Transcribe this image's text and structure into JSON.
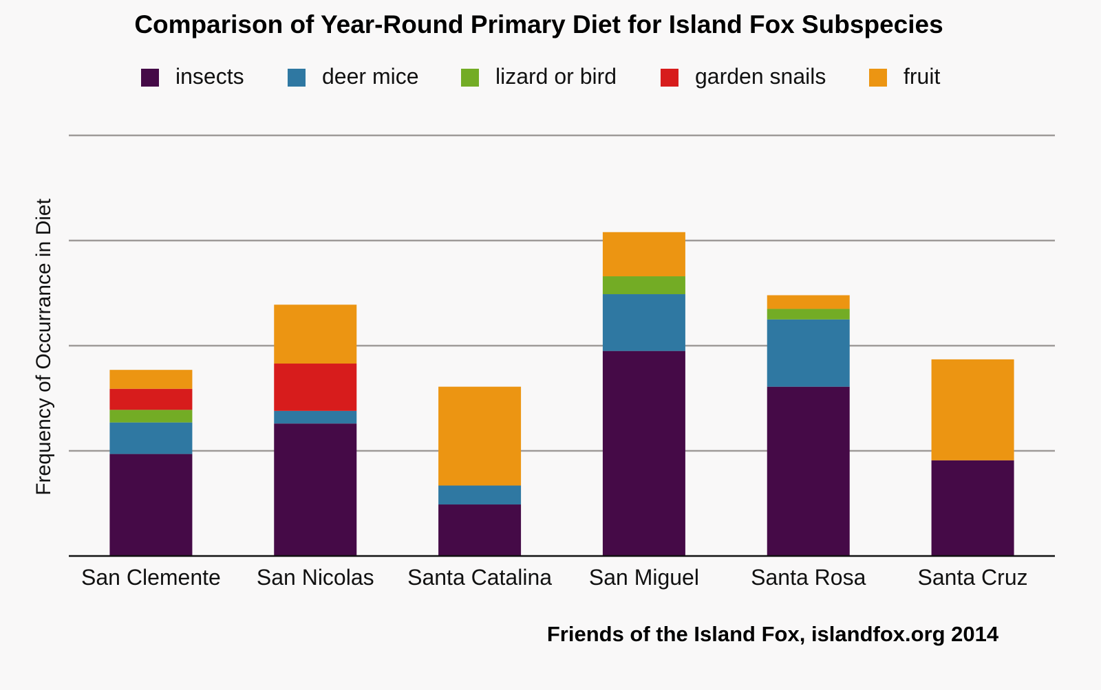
{
  "chart_data": {
    "type": "bar",
    "stacked": true,
    "title": "Comparison of Year-Round Primary Diet for Island Fox Subspecies",
    "xlabel": "",
    "ylabel": "Frequency of Occurrance in Diet",
    "credit": "Friends of the Island Fox, islandfox.org 2014",
    "categories": [
      "San Clemente",
      "San Nicolas",
      "Santa Catalina",
      "San Miguel",
      "Santa Rosa",
      "Santa Cruz"
    ],
    "series": [
      {
        "name": "insects",
        "color": "#450a47",
        "values": [
          0.97,
          1.26,
          0.49,
          1.95,
          1.61,
          0.91
        ]
      },
      {
        "name": "deer mice",
        "color": "#2f78a2",
        "values": [
          0.3,
          0.12,
          0.18,
          0.54,
          0.64,
          0
        ]
      },
      {
        "name": "lizard or bird",
        "color": "#73ac25",
        "values": [
          0.12,
          0,
          0,
          0.17,
          0.1,
          0
        ]
      },
      {
        "name": "garden snails",
        "color": "#d71c1c",
        "values": [
          0.2,
          0.45,
          0,
          0,
          0,
          0
        ]
      },
      {
        "name": "fruit",
        "color": "#ec9512",
        "values": [
          0.18,
          0.56,
          0.94,
          0.42,
          0.13,
          0.96
        ]
      }
    ],
    "ylim": [
      0,
      4
    ],
    "grid": true,
    "legend_position": "top"
  }
}
